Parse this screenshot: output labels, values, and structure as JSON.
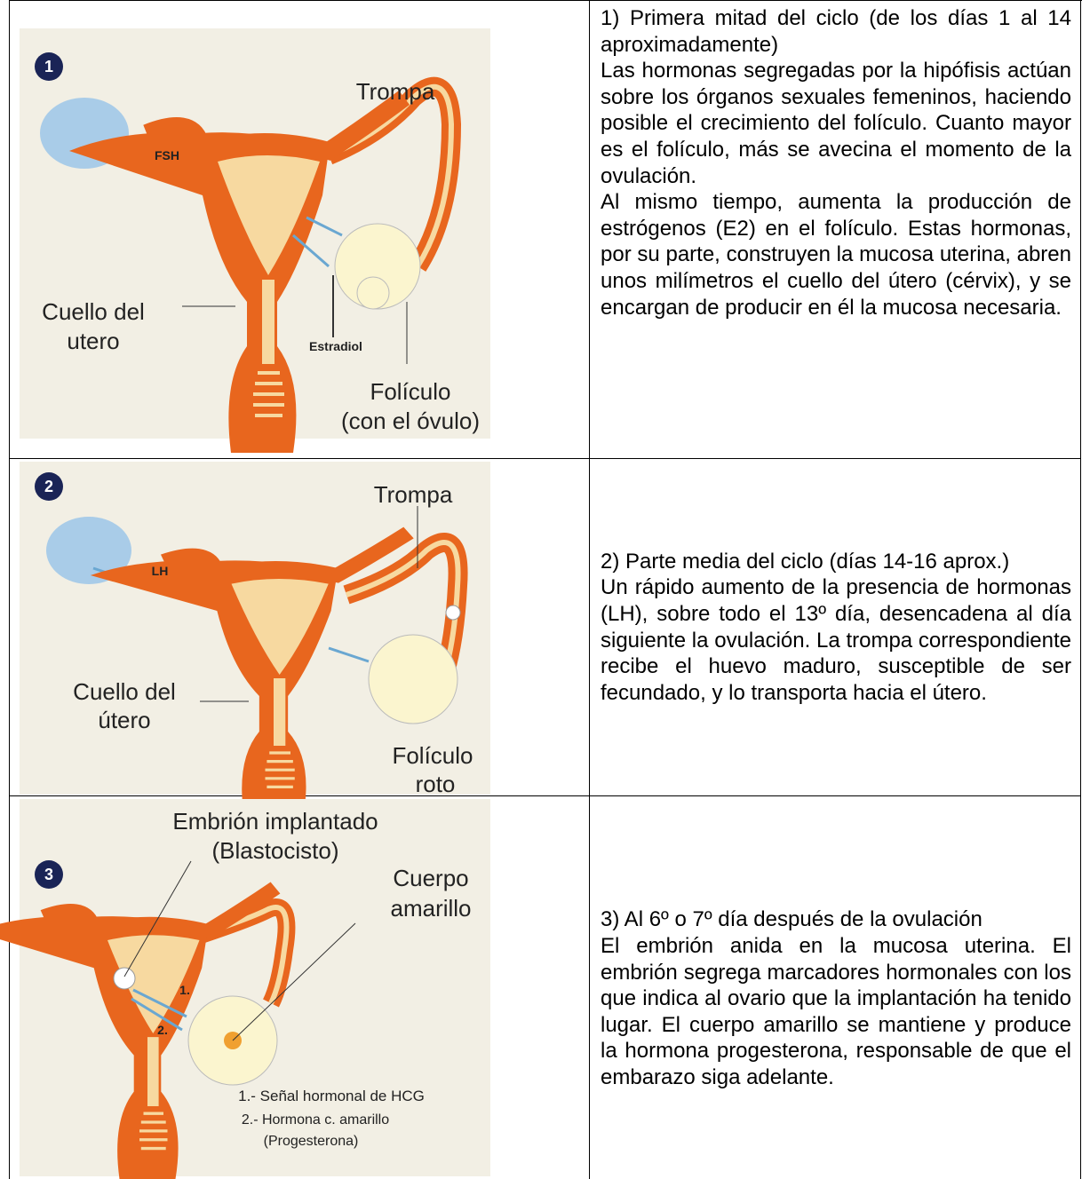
{
  "rows": [
    {
      "figure": {
        "number": "1",
        "labels": [
          "Trompa",
          "FSH",
          "Cuello del",
          "utero",
          "Estradiol",
          "Folículo",
          "(con el óvulo)"
        ]
      },
      "text": [
        "1) Primera mitad del ciclo (de los días 1 al 14 aproximadamente)",
        "Las hormonas segregadas por la hipófisis actúan sobre los órganos sexuales femeninos, haciendo posible el crecimiento del folículo. Cuanto mayor es el folículo, más se avecina el momento de la ovulación.",
        "Al mismo tiempo, aumenta la producción de estrógenos (E2) en el folículo. Estas hormonas, por su parte, construyen la mucosa uterina, abren unos milímetros el cuello del útero (cérvix), y se encargan de producir en él la mucosa necesaria."
      ]
    },
    {
      "figure": {
        "number": "2",
        "labels": [
          "Trompa",
          "LH",
          "Cuello del",
          "útero",
          "Folículo",
          "roto"
        ]
      },
      "text": [
        "2) Parte media del ciclo (días 14-16 aprox.)",
        "Un rápido aumento de la presencia de hormonas (LH), sobre todo el 13º día, desencadena al día siguiente la ovulación. La trompa correspondiente recibe el huevo maduro, susceptible de ser fecundado, y lo transporta hacia el útero."
      ]
    },
    {
      "figure": {
        "number": "3",
        "labels": [
          "Embrión implantado",
          "(Blastocisto)",
          "Cuerpo",
          "amarillo",
          "1.",
          "2.",
          "1.- Señal hormonal de HCG",
          "2.- Hormona c. amarillo",
          "(Progesterona)"
        ]
      },
      "text": [
        "3) Al 6º o 7º día después de la ovulación",
        "El embrión anida en la mucosa uterina. El embrión segrega marcadores hormonales con los que indica al ovario que la implantación ha tenido lugar. El cuerpo amarillo se mantiene y produce la hormona progesterona, responsable de que el embarazo siga adelante."
      ]
    }
  ]
}
